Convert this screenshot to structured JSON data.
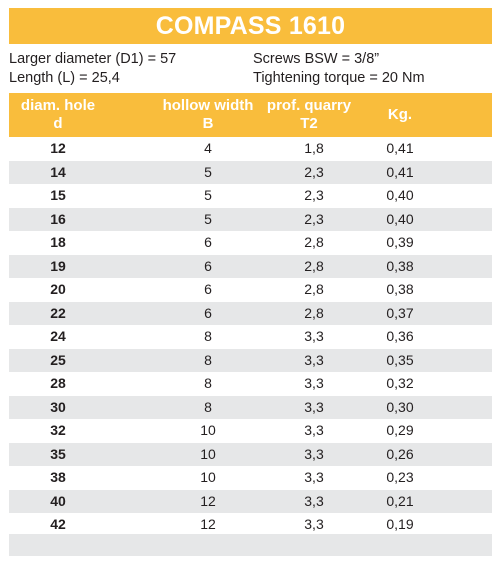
{
  "title": "COMPASS 1610",
  "specs": {
    "larger_diameter": "Larger diameter (D1) = 57",
    "length": "Length (L) = 25,4",
    "screws": "Screws BSW = 3/8”",
    "torque": "Tightening torque = 20 Nm"
  },
  "headers": {
    "diam_top": "diam. hole",
    "diam_bottom": "d",
    "hollow_top": "hollow width",
    "hollow_bottom": "B",
    "prof_top": "prof. quarry",
    "prof_bottom": "T2",
    "kg": "Kg."
  },
  "rows": [
    {
      "d": "12",
      "b": "4",
      "t2": "1,8",
      "kg": "0,41"
    },
    {
      "d": "14",
      "b": "5",
      "t2": "2,3",
      "kg": "0,41"
    },
    {
      "d": "15",
      "b": "5",
      "t2": "2,3",
      "kg": "0,40"
    },
    {
      "d": "16",
      "b": "5",
      "t2": "2,3",
      "kg": "0,40"
    },
    {
      "d": "18",
      "b": "6",
      "t2": "2,8",
      "kg": "0,39"
    },
    {
      "d": "19",
      "b": "6",
      "t2": "2,8",
      "kg": "0,38"
    },
    {
      "d": "20",
      "b": "6",
      "t2": "2,8",
      "kg": "0,38"
    },
    {
      "d": "22",
      "b": "6",
      "t2": "2,8",
      "kg": "0,37"
    },
    {
      "d": "24",
      "b": "8",
      "t2": "3,3",
      "kg": "0,36"
    },
    {
      "d": "25",
      "b": "8",
      "t2": "3,3",
      "kg": "0,35"
    },
    {
      "d": "28",
      "b": "8",
      "t2": "3,3",
      "kg": "0,32"
    },
    {
      "d": "30",
      "b": "8",
      "t2": "3,3",
      "kg": "0,30"
    },
    {
      "d": "32",
      "b": "10",
      "t2": "3,3",
      "kg": "0,29"
    },
    {
      "d": "35",
      "b": "10",
      "t2": "3,3",
      "kg": "0,26"
    },
    {
      "d": "38",
      "b": "10",
      "t2": "3,3",
      "kg": "0,23"
    },
    {
      "d": "40",
      "b": "12",
      "t2": "3,3",
      "kg": "0,21"
    },
    {
      "d": "42",
      "b": "12",
      "t2": "3,3",
      "kg": "0,19"
    }
  ],
  "colors": {
    "accent": "#f9bd3c",
    "stripe": "#e6e7e8",
    "text": "#231f20"
  }
}
